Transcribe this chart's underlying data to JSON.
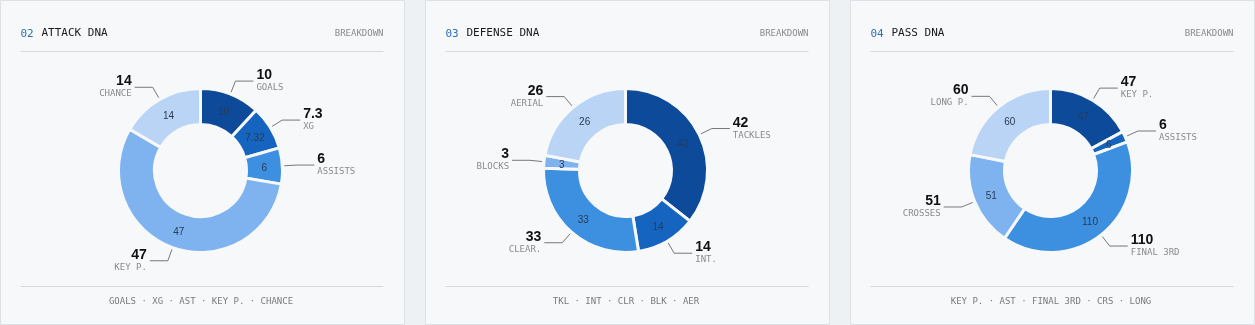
{
  "chart_data": [
    {
      "type": "donut",
      "title": "02 ATTACK DNA",
      "subtitle": "BREAKDOWN",
      "categories": [
        "GOALS",
        "XG",
        "ASSISTS",
        "KEY P.",
        "CHANCE"
      ],
      "values": [
        10,
        7.32,
        6,
        47,
        14
      ],
      "value_labels": [
        "10",
        "7.32",
        "6",
        "47",
        "14"
      ],
      "colors": [
        "#0d4a9a",
        "#1565c0",
        "#3d8fe0",
        "#7fb3ef",
        "#b9d4f5"
      ],
      "annotations": [
        {
          "text": "10",
          "x": "GOALS"
        },
        {
          "text": "7.3",
          "x": "XG"
        },
        {
          "text": "6",
          "x": "ASSISTS"
        },
        {
          "text": "47",
          "x": "KEY P."
        },
        {
          "text": "14",
          "x": "CHANCE"
        },
        "GOALS · XG · AST · KEY P. · CHANCE"
      ]
    },
    {
      "type": "donut",
      "title": "03 DEFENSE DNA",
      "subtitle": "BREAKDOWN",
      "categories": [
        "TACKLES",
        "INT.",
        "CLEAR.",
        "BLOCKS",
        "AERIAL"
      ],
      "values": [
        42,
        14,
        33,
        3,
        26
      ],
      "value_labels": [
        "42",
        "14",
        "33",
        "3",
        "26"
      ],
      "colors": [
        "#0d4a9a",
        "#1565c0",
        "#3d8fe0",
        "#7fb3ef",
        "#b9d4f5"
      ],
      "annotations": [
        {
          "text": "42",
          "x": "TACKLES"
        },
        {
          "text": "14",
          "x": "INT."
        },
        {
          "text": "33",
          "x": "CLEAR."
        },
        {
          "text": "3",
          "x": "BLOCKS"
        },
        {
          "text": "26",
          "x": "AERIAL"
        },
        "TKL · INT · CLR · BLK · AER"
      ]
    },
    {
      "type": "donut",
      "title": "04 PASS DNA",
      "subtitle": "BREAKDOWN",
      "categories": [
        "KEY P.",
        "ASSISTS",
        "FINAL 3RD",
        "CROSSES",
        "LONG P."
      ],
      "values": [
        47,
        6,
        110,
        51,
        60
      ],
      "value_labels": [
        "47",
        "6",
        "110",
        "51",
        "60"
      ],
      "colors": [
        "#0d4a9a",
        "#1565c0",
        "#3d8fe0",
        "#7fb3ef",
        "#b9d4f5"
      ],
      "annotations": [
        {
          "text": "47",
          "x": "KEY P."
        },
        {
          "text": "6",
          "x": "ASSISTS"
        },
        {
          "text": "110",
          "x": "FINAL 3RD"
        },
        {
          "text": "51",
          "x": "CROSSES"
        },
        {
          "text": "60",
          "x": "LONG P."
        },
        "KEY P. · AST · FINAL 3RD · CRS · LONG"
      ]
    }
  ]
}
